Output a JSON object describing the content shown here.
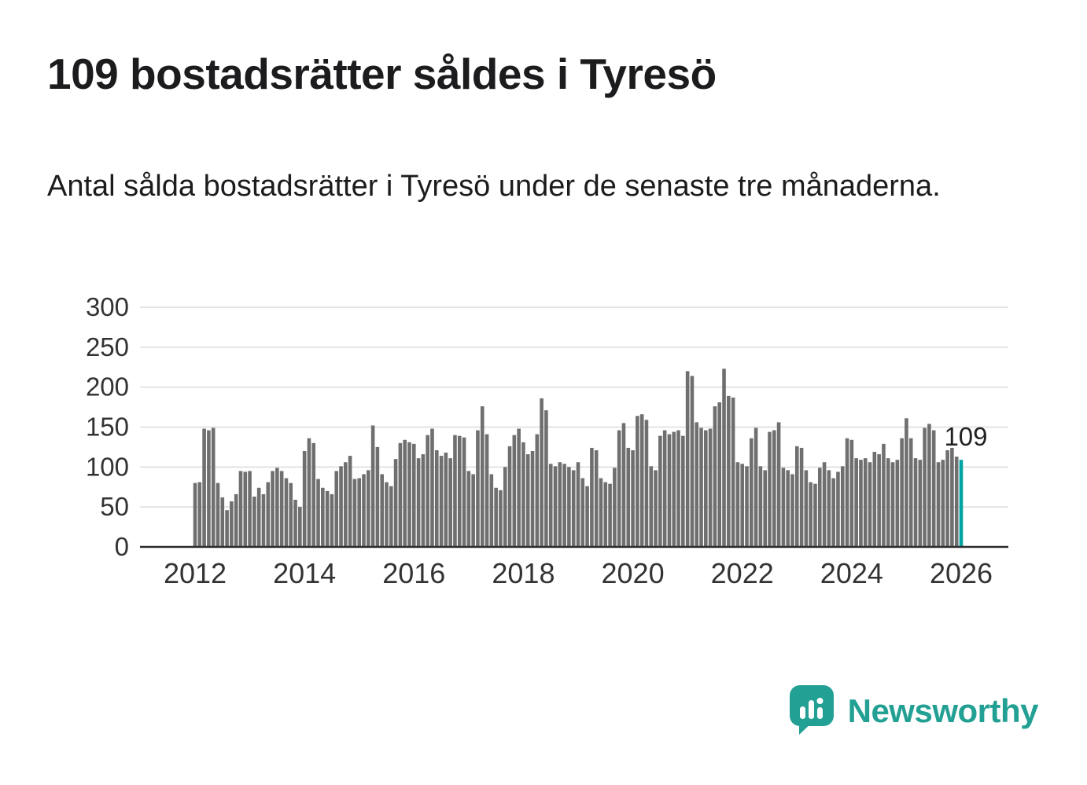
{
  "page": {
    "title": "109 bostadsrätter såldes i Tyresö",
    "subtitle": "Antal sålda bostadsrätter i Tyresö under de senaste tre månaderna."
  },
  "chart_data": {
    "type": "bar",
    "title": "109 bostadsrätter såldes i Tyresö",
    "description": "Antal sålda bostadsrätter i Tyresö under de senaste tre månaderna.",
    "x_start": "2012-01",
    "x_frequency": "monthly",
    "values": [
      80,
      81,
      148,
      146,
      149,
      80,
      62,
      46,
      57,
      66,
      95,
      94,
      95,
      63,
      74,
      66,
      81,
      95,
      99,
      95,
      86,
      80,
      59,
      50,
      120,
      136,
      130,
      85,
      74,
      70,
      66,
      95,
      101,
      106,
      114,
      85,
      86,
      91,
      96,
      152,
      125,
      91,
      81,
      76,
      110,
      130,
      134,
      131,
      129,
      111,
      116,
      140,
      148,
      121,
      114,
      118,
      111,
      140,
      139,
      137,
      95,
      91,
      146,
      176,
      141,
      91,
      74,
      71,
      100,
      126,
      140,
      148,
      131,
      116,
      120,
      141,
      186,
      171,
      104,
      101,
      106,
      104,
      100,
      96,
      106,
      86,
      76,
      124,
      121,
      86,
      81,
      79,
      99,
      146,
      155,
      124,
      121,
      164,
      166,
      159,
      101,
      96,
      139,
      146,
      141,
      144,
      146,
      139,
      220,
      214,
      156,
      149,
      146,
      148,
      176,
      181,
      223,
      189,
      187,
      106,
      104,
      101,
      136,
      149,
      101,
      96,
      144,
      146,
      156,
      99,
      96,
      91,
      126,
      124,
      96,
      81,
      79,
      99,
      106,
      96,
      86,
      94,
      101,
      136,
      134,
      111,
      109,
      111,
      106,
      119,
      116,
      129,
      111,
      106,
      109,
      136,
      161,
      136,
      111,
      109,
      149,
      154,
      146,
      106,
      109,
      121,
      124,
      113,
      109
    ],
    "highlight_last": true,
    "last_value_label": "109",
    "ylim": [
      0,
      300
    ],
    "yticks": [
      0,
      50,
      100,
      150,
      200,
      250,
      300
    ],
    "xticks": [
      2012,
      2014,
      2016,
      2018,
      2020,
      2022,
      2024,
      2026
    ],
    "xlabel": "",
    "ylabel": "",
    "grid": "horizontal",
    "legend": "none",
    "colors": {
      "bar": "#6f6f6f",
      "highlight": "#00a3a3",
      "grid": "#dcdcdc",
      "axis": "#2b2b2b",
      "tick_text": "#333333",
      "annotation_text": "#222222"
    }
  },
  "branding": {
    "logo_text": "Newsworthy",
    "brand_color": "#23a094",
    "logo_icon": "bar-chart-speech-bubble"
  }
}
